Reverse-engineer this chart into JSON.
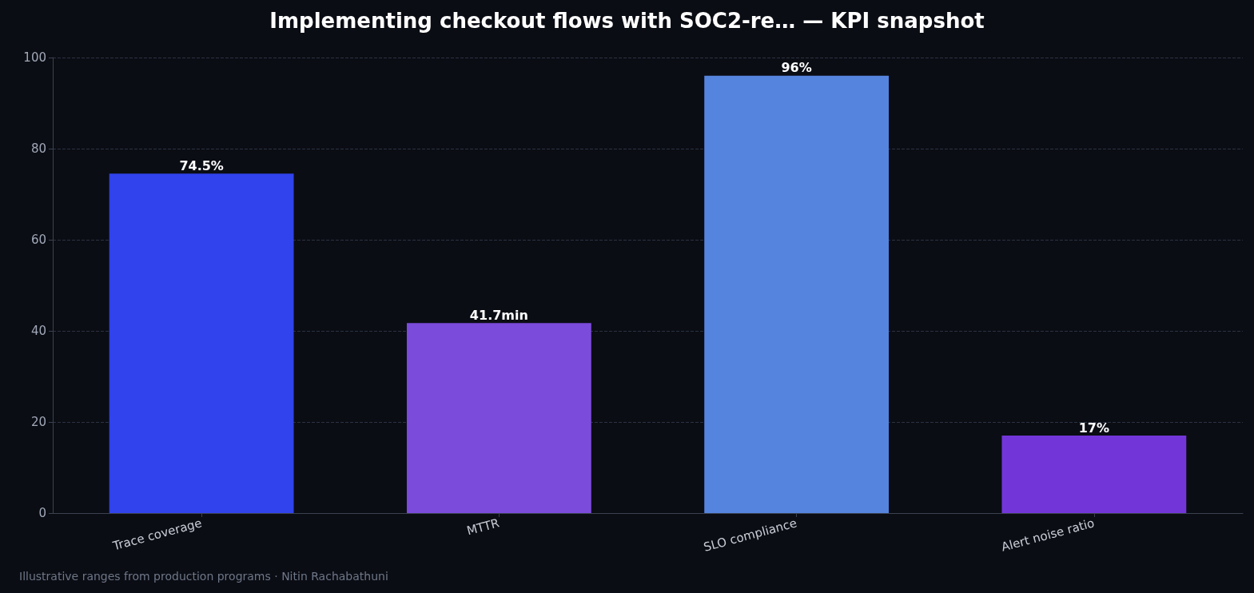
{
  "chart_data": {
    "type": "bar",
    "title": "Implementing checkout flows with SOC2-re… — KPI snapshot",
    "categories": [
      "Trace coverage",
      "MTTR",
      "SLO compliance",
      "Alert noise ratio"
    ],
    "values": [
      74.5,
      41.7,
      96,
      17
    ],
    "colors": [
      "#3043ec",
      "#7b4bdc",
      "#5584de",
      "#7236d8"
    ],
    "value_labels": [
      "74.5%",
      "41.7min",
      "96%",
      "17%"
    ],
    "ylim": [
      0,
      100
    ],
    "yticks": [
      0,
      20,
      40,
      60,
      80,
      100
    ],
    "grid": "y",
    "annotations": [
      "Illustrative ranges from production programs · Nitin Rachabathuni"
    ]
  }
}
